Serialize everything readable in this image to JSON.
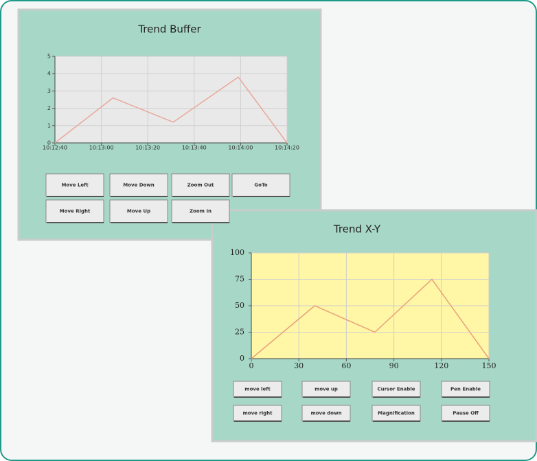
{
  "chart_data": [
    {
      "type": "line",
      "title": "Trend Buffer",
      "x": [
        "10:12:40",
        "10:13:05",
        "10:13:31",
        "10:13:59",
        "10:14:20"
      ],
      "values": [
        0,
        2.6,
        1.2,
        3.8,
        0
      ],
      "color": "#e8a89a",
      "xlim": [
        "10:12:40",
        "10:14:20"
      ],
      "xticks": [
        "10:12:40",
        "10:13:00",
        "10:13:20",
        "10:13:40",
        "10:14:00",
        "10:14:20"
      ],
      "ylim": [
        0,
        5
      ],
      "yticks": [
        0,
        1,
        2,
        3,
        4,
        5
      ],
      "grid": true
    },
    {
      "type": "line",
      "title": "Trend X-Y",
      "x": [
        0,
        40,
        78,
        114,
        150
      ],
      "values": [
        0,
        50,
        25,
        75,
        0
      ],
      "color": "#e8a07a",
      "xlim": [
        0,
        150
      ],
      "xticks": [
        0,
        30,
        60,
        90,
        120,
        150
      ],
      "ylim": [
        0,
        100
      ],
      "yticks": [
        0,
        25,
        50,
        75,
        100
      ],
      "grid": true
    }
  ],
  "panels": [
    {
      "buttons": [
        "Move Left",
        "Move Down",
        "Zoom Out",
        "GoTo",
        "Move Right",
        "Move Up",
        "Zoom In"
      ]
    },
    {
      "buttons": [
        "move left",
        "move up",
        "Cursor Enable",
        "Pen Enable",
        "move right",
        "move down",
        "Magnification",
        "Pause Off"
      ]
    }
  ]
}
